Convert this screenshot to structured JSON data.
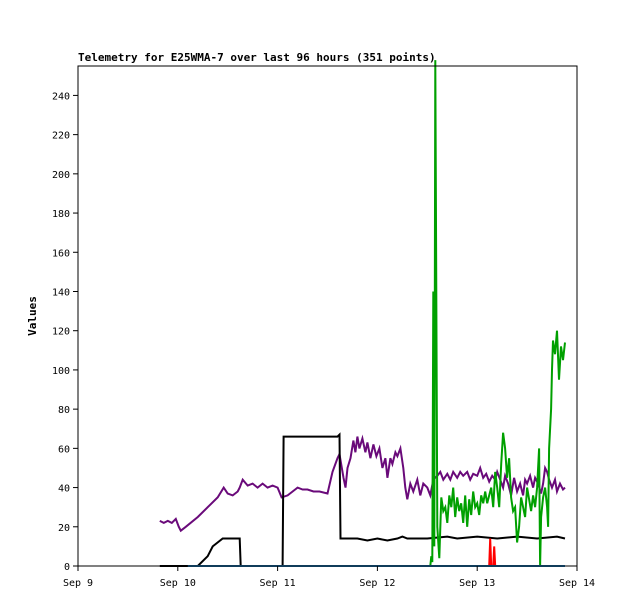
{
  "chart_data": {
    "type": "line",
    "title": "Telemetry for E25WMA-7 over last 96 hours (351 points)",
    "ylabel": "Values",
    "xlabel": "",
    "x_unit": "days (Sep 2024 date axis)",
    "xlim": [
      9,
      14
    ],
    "ylim": [
      0,
      255
    ],
    "x_ticks": [
      {
        "value": 9,
        "label": "Sep 9"
      },
      {
        "value": 10,
        "label": "Sep 10"
      },
      {
        "value": 11,
        "label": "Sep 11"
      },
      {
        "value": 12,
        "label": "Sep 12"
      },
      {
        "value": 13,
        "label": "Sep 13"
      },
      {
        "value": 14,
        "label": "Sep 14"
      }
    ],
    "y_ticks": [
      0,
      20,
      40,
      60,
      80,
      100,
      120,
      140,
      160,
      180,
      200,
      220,
      240
    ],
    "grid": false,
    "series": [
      {
        "color": "#6a0a7a",
        "points": [
          [
            9.82,
            23
          ],
          [
            9.86,
            22
          ],
          [
            9.9,
            23
          ],
          [
            9.94,
            22
          ],
          [
            9.98,
            24
          ],
          [
            10.01,
            20
          ],
          [
            10.03,
            18
          ],
          [
            10.08,
            20
          ],
          [
            10.2,
            25
          ],
          [
            10.3,
            30
          ],
          [
            10.4,
            35
          ],
          [
            10.46,
            40
          ],
          [
            10.5,
            37
          ],
          [
            10.55,
            36
          ],
          [
            10.6,
            38
          ],
          [
            10.62,
            40
          ],
          [
            10.65,
            44
          ],
          [
            10.7,
            41
          ],
          [
            10.75,
            42
          ],
          [
            10.8,
            40
          ],
          [
            10.85,
            42
          ],
          [
            10.9,
            40
          ],
          [
            10.95,
            41
          ],
          [
            11.0,
            40
          ],
          [
            11.04,
            35
          ],
          [
            11.1,
            36
          ],
          [
            11.15,
            38
          ],
          [
            11.2,
            40
          ],
          [
            11.25,
            39
          ],
          [
            11.3,
            39
          ],
          [
            11.36,
            38
          ],
          [
            11.42,
            38
          ],
          [
            11.5,
            37
          ],
          [
            11.55,
            48
          ],
          [
            11.6,
            55
          ],
          [
            11.62,
            57
          ],
          [
            11.66,
            45
          ],
          [
            11.68,
            40
          ],
          [
            11.7,
            50
          ],
          [
            11.73,
            55
          ],
          [
            11.76,
            64
          ],
          [
            11.78,
            58
          ],
          [
            11.8,
            66
          ],
          [
            11.82,
            60
          ],
          [
            11.85,
            65
          ],
          [
            11.88,
            58
          ],
          [
            11.9,
            63
          ],
          [
            11.93,
            55
          ],
          [
            11.96,
            62
          ],
          [
            11.99,
            56
          ],
          [
            12.02,
            60
          ],
          [
            12.05,
            50
          ],
          [
            12.08,
            55
          ],
          [
            12.1,
            45
          ],
          [
            12.13,
            55
          ],
          [
            12.15,
            52
          ],
          [
            12.18,
            58
          ],
          [
            12.2,
            56
          ],
          [
            12.23,
            60
          ],
          [
            12.26,
            50
          ],
          [
            12.28,
            40
          ],
          [
            12.3,
            34
          ],
          [
            12.33,
            42
          ],
          [
            12.36,
            38
          ],
          [
            12.4,
            44
          ],
          [
            12.43,
            36
          ],
          [
            12.46,
            42
          ],
          [
            12.5,
            40
          ],
          [
            12.53,
            36
          ],
          [
            12.56,
            44
          ],
          [
            12.6,
            46
          ],
          [
            12.63,
            48
          ],
          [
            12.66,
            44
          ],
          [
            12.7,
            47
          ],
          [
            12.73,
            44
          ],
          [
            12.76,
            48
          ],
          [
            12.8,
            45
          ],
          [
            12.83,
            48
          ],
          [
            12.86,
            46
          ],
          [
            12.9,
            48
          ],
          [
            12.93,
            44
          ],
          [
            12.96,
            47
          ],
          [
            13.0,
            46
          ],
          [
            13.03,
            50
          ],
          [
            13.06,
            45
          ],
          [
            13.09,
            47
          ],
          [
            13.12,
            43
          ],
          [
            13.15,
            46
          ],
          [
            13.18,
            44
          ],
          [
            13.2,
            48
          ],
          [
            13.23,
            44
          ],
          [
            13.26,
            40
          ],
          [
            13.28,
            46
          ],
          [
            13.31,
            42
          ],
          [
            13.34,
            36
          ],
          [
            13.37,
            45
          ],
          [
            13.4,
            38
          ],
          [
            13.43,
            42
          ],
          [
            13.46,
            36
          ],
          [
            13.48,
            44
          ],
          [
            13.5,
            42
          ],
          [
            13.53,
            46
          ],
          [
            13.56,
            40
          ],
          [
            13.58,
            45
          ],
          [
            13.61,
            42
          ],
          [
            13.64,
            37
          ],
          [
            13.66,
            42
          ],
          [
            13.68,
            50
          ],
          [
            13.7,
            48
          ],
          [
            13.72,
            44
          ],
          [
            13.75,
            40
          ],
          [
            13.78,
            44
          ],
          [
            13.8,
            38
          ],
          [
            13.83,
            42
          ],
          [
            13.86,
            39
          ],
          [
            13.88,
            40
          ]
        ]
      },
      {
        "color": "#000000",
        "points": [
          [
            9.82,
            0
          ],
          [
            10.1,
            0
          ],
          [
            10.2,
            0
          ],
          [
            10.3,
            5
          ],
          [
            10.35,
            10
          ],
          [
            10.45,
            14
          ],
          [
            10.5,
            14
          ],
          [
            10.62,
            14
          ],
          [
            10.63,
            0
          ],
          [
            10.7,
            0
          ],
          [
            10.9,
            0
          ],
          [
            11.05,
            0
          ],
          [
            11.06,
            66
          ],
          [
            11.3,
            66
          ],
          [
            11.6,
            66
          ],
          [
            11.62,
            67
          ],
          [
            11.63,
            14
          ],
          [
            11.7,
            14
          ],
          [
            11.8,
            14
          ],
          [
            11.9,
            13
          ],
          [
            12.0,
            14
          ],
          [
            12.1,
            13
          ],
          [
            12.2,
            14
          ],
          [
            12.25,
            15
          ],
          [
            12.3,
            14
          ],
          [
            12.5,
            14
          ],
          [
            12.7,
            15
          ],
          [
            12.8,
            14
          ],
          [
            13.0,
            15
          ],
          [
            13.2,
            14
          ],
          [
            13.4,
            15
          ],
          [
            13.6,
            14
          ],
          [
            13.8,
            15
          ],
          [
            13.88,
            14
          ]
        ]
      },
      {
        "color": "#00a000",
        "points": [
          [
            12.5,
            0
          ],
          [
            12.53,
            0
          ],
          [
            12.54,
            5
          ],
          [
            12.55,
            2
          ],
          [
            12.56,
            140
          ],
          [
            12.57,
            10
          ],
          [
            12.58,
            258
          ],
          [
            12.6,
            20
          ],
          [
            12.62,
            4
          ],
          [
            12.64,
            35
          ],
          [
            12.66,
            28
          ],
          [
            12.68,
            30
          ],
          [
            12.7,
            22
          ],
          [
            12.72,
            36
          ],
          [
            12.74,
            30
          ],
          [
            12.76,
            40
          ],
          [
            12.78,
            25
          ],
          [
            12.8,
            35
          ],
          [
            12.82,
            28
          ],
          [
            12.84,
            32
          ],
          [
            12.86,
            22
          ],
          [
            12.88,
            36
          ],
          [
            12.9,
            20
          ],
          [
            12.92,
            34
          ],
          [
            12.94,
            26
          ],
          [
            12.96,
            38
          ],
          [
            12.98,
            30
          ],
          [
            13.0,
            32
          ],
          [
            13.02,
            26
          ],
          [
            13.04,
            36
          ],
          [
            13.06,
            32
          ],
          [
            13.08,
            38
          ],
          [
            13.1,
            32
          ],
          [
            13.12,
            36
          ],
          [
            13.14,
            40
          ],
          [
            13.16,
            30
          ],
          [
            13.18,
            48
          ],
          [
            13.2,
            40
          ],
          [
            13.22,
            30
          ],
          [
            13.24,
            52
          ],
          [
            13.26,
            68
          ],
          [
            13.28,
            60
          ],
          [
            13.3,
            45
          ],
          [
            13.32,
            55
          ],
          [
            13.34,
            35
          ],
          [
            13.36,
            28
          ],
          [
            13.38,
            30
          ],
          [
            13.4,
            12
          ],
          [
            13.42,
            20
          ],
          [
            13.44,
            35
          ],
          [
            13.46,
            30
          ],
          [
            13.48,
            25
          ],
          [
            13.5,
            40
          ],
          [
            13.52,
            34
          ],
          [
            13.54,
            28
          ],
          [
            13.56,
            36
          ],
          [
            13.58,
            30
          ],
          [
            13.6,
            40
          ],
          [
            13.62,
            60
          ],
          [
            13.63,
            0
          ],
          [
            13.64,
            25
          ],
          [
            13.66,
            35
          ],
          [
            13.68,
            40
          ],
          [
            13.7,
            30
          ],
          [
            13.71,
            20
          ],
          [
            13.72,
            60
          ],
          [
            13.74,
            80
          ],
          [
            13.75,
            100
          ],
          [
            13.76,
            115
          ],
          [
            13.78,
            108
          ],
          [
            13.8,
            120
          ],
          [
            13.82,
            95
          ],
          [
            13.84,
            112
          ],
          [
            13.86,
            105
          ],
          [
            13.88,
            114
          ]
        ]
      },
      {
        "color": "#ff0000",
        "points": [
          [
            13.12,
            0
          ],
          [
            13.13,
            14
          ],
          [
            13.14,
            0
          ],
          [
            13.16,
            0
          ],
          [
            13.17,
            10
          ],
          [
            13.18,
            0
          ],
          [
            13.19,
            0
          ]
        ]
      },
      {
        "color": "#1f77b4",
        "points": [
          [
            10.1,
            0
          ],
          [
            10.5,
            0
          ],
          [
            11.0,
            0
          ],
          [
            11.5,
            0
          ],
          [
            12.0,
            0
          ],
          [
            12.5,
            0
          ],
          [
            13.0,
            0
          ],
          [
            13.5,
            0
          ],
          [
            13.88,
            0
          ]
        ]
      }
    ]
  }
}
